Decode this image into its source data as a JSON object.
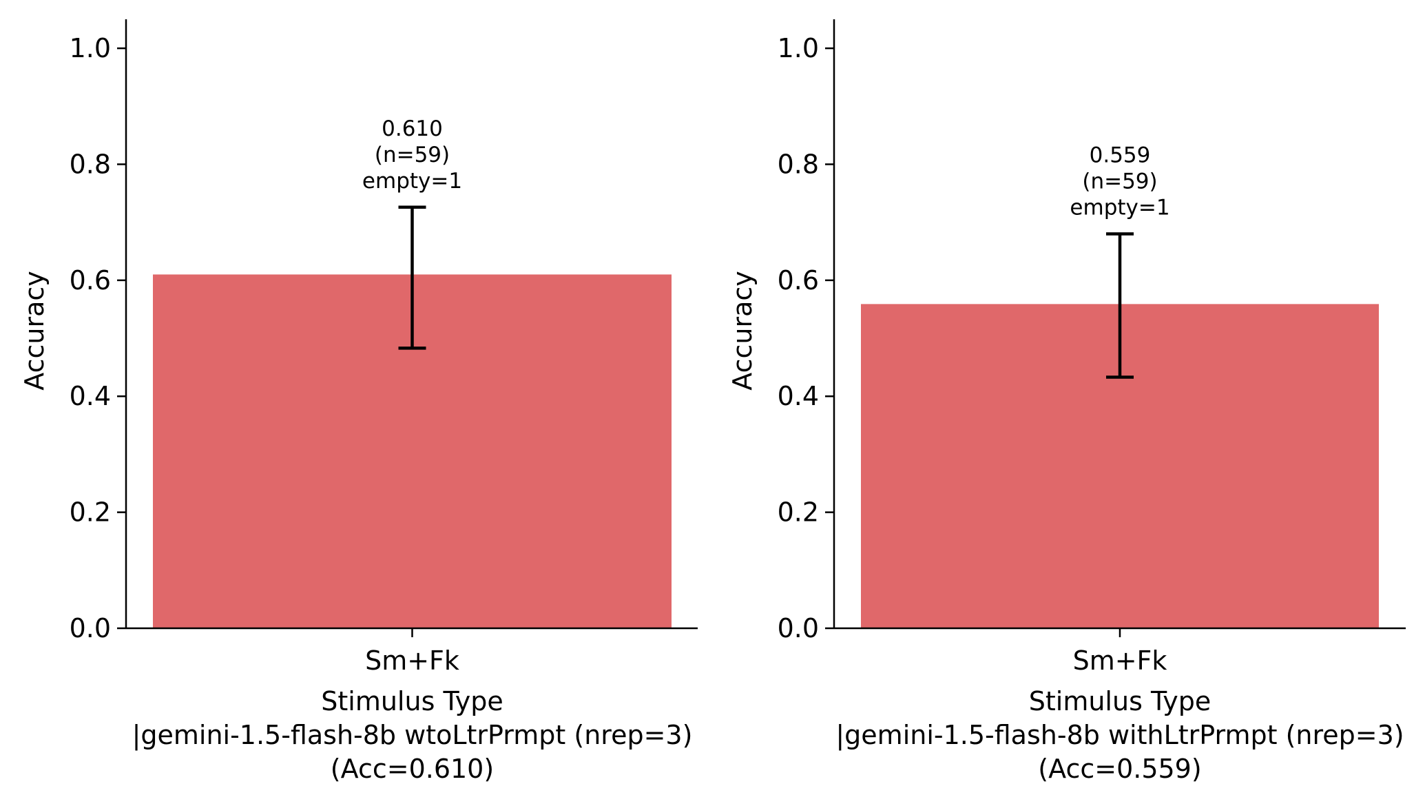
{
  "chart_data": [
    {
      "type": "bar",
      "categories": [
        "Sm+Fk"
      ],
      "values": [
        0.61
      ],
      "error_low": [
        0.483
      ],
      "error_high": [
        0.726
      ],
      "bar_color": "#e0686a",
      "ylabel": "Accuracy",
      "ylim": [
        0,
        1.05
      ],
      "yticks": [
        "0.0",
        "0.2",
        "0.4",
        "0.6",
        "0.8",
        "1.0"
      ],
      "xlabel_lines": [
        "Stimulus Type",
        "|gemini-1.5-flash-8b wtoLtrPrmpt (nrep=3)",
        "(Acc=0.610)"
      ],
      "annotation": [
        "0.610",
        "(n=59)",
        "empty=1"
      ],
      "grid": false
    },
    {
      "type": "bar",
      "categories": [
        "Sm+Fk"
      ],
      "values": [
        0.559
      ],
      "error_low": [
        0.433
      ],
      "error_high": [
        0.68
      ],
      "bar_color": "#e0686a",
      "ylabel": "Accuracy",
      "ylim": [
        0,
        1.05
      ],
      "yticks": [
        "0.0",
        "0.2",
        "0.4",
        "0.6",
        "0.8",
        "1.0"
      ],
      "xlabel_lines": [
        "Stimulus Type",
        "|gemini-1.5-flash-8b withLtrPrmpt (nrep=3)",
        "(Acc=0.559)"
      ],
      "annotation": [
        "0.559",
        "(n=59)",
        "empty=1"
      ],
      "grid": false
    }
  ]
}
